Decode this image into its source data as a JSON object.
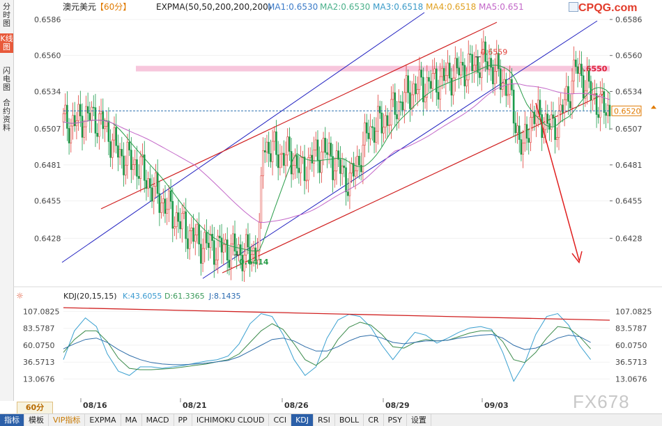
{
  "left_tabs": [
    {
      "label": "分时图",
      "active": false
    },
    {
      "label": "K线图",
      "active": true
    },
    {
      "label": "闪电图",
      "active": false
    },
    {
      "label": "合约资料",
      "active": false
    }
  ],
  "header": {
    "symbol": "澳元美元",
    "period": "【60分】",
    "indicator": "EXPMA(50,50,200,200,200)",
    "ma1": "MA1:0.6530",
    "ma2": "MA2:0.6530",
    "ma3": "MA3:0.6518",
    "ma4": "MA4:0.6518",
    "ma5": "MA5:0.651"
  },
  "logo": "CPQG.com",
  "watermark": "FX678",
  "period_button": "60分",
  "bottom_tabs": [
    {
      "label": "指标",
      "active": true
    },
    {
      "label": "模板",
      "active": false
    },
    {
      "label": "VIP指标",
      "active": false,
      "vip": true
    },
    {
      "label": "EXPMA",
      "active": false
    },
    {
      "label": "MA",
      "active": false
    },
    {
      "label": "MACD",
      "active": false
    },
    {
      "label": "PP",
      "active": false
    },
    {
      "label": "ICHIMOKU CLOUD",
      "active": false
    },
    {
      "label": "CCI",
      "active": false
    },
    {
      "label": "KDJ",
      "active": true
    },
    {
      "label": "RSI",
      "active": false
    },
    {
      "label": "BOLL",
      "active": false
    },
    {
      "label": "CR",
      "active": false
    },
    {
      "label": "PSY",
      "active": false
    },
    {
      "label": "设置",
      "active": false
    }
  ],
  "kdj_header": {
    "title": "KDJ(20,15,15)",
    "k": "K:43.6055",
    "d": "D:61.3365",
    "j": "J:8.1435"
  },
  "colors": {
    "up": "#e0403a",
    "down": "#1a9a4a",
    "ma_short": "#2a9d4a",
    "ma_long": "#c266c8",
    "channel_blue": "#2020c0",
    "channel_red": "#d02020",
    "resistance_band": "#f7c6dc",
    "k_line": "#3aa0d0",
    "d_line": "#3a8a4a",
    "j_line": "#2c6ca8"
  },
  "chart_data": {
    "type": "candlestick",
    "title": "澳元美元 60分",
    "x_labels": [
      "08/16",
      "08/21",
      "08/26",
      "08/29",
      "09/03"
    ],
    "y_ticks": [
      0.6586,
      0.656,
      0.6534,
      0.6507,
      0.6481,
      0.6455,
      0.6428
    ],
    "ylim": [
      0.6396,
      0.6591
    ],
    "current_price": 0.652,
    "current_price_label": "0.6520",
    "resistance": {
      "value": 0.655,
      "label": "0.6550"
    },
    "annotations": [
      {
        "label": "0.6559",
        "value": 0.6559
      },
      {
        "label": "0.6414",
        "value": 0.6414
      }
    ],
    "path_points": [
      [
        0,
        0.6512
      ],
      [
        4,
        0.651
      ],
      [
        10,
        0.6515
      ],
      [
        16,
        0.6516
      ],
      [
        22,
        0.6508
      ],
      [
        30,
        0.6488
      ],
      [
        40,
        0.648
      ],
      [
        48,
        0.6462
      ],
      [
        56,
        0.6449
      ],
      [
        64,
        0.6436
      ],
      [
        72,
        0.6425
      ],
      [
        80,
        0.6422
      ],
      [
        88,
        0.642
      ],
      [
        94,
        0.6418
      ],
      [
        100,
        0.6416
      ],
      [
        104,
        0.6428
      ],
      [
        106,
        0.6497
      ],
      [
        110,
        0.6492
      ],
      [
        116,
        0.6488
      ],
      [
        122,
        0.6486
      ],
      [
        126,
        0.6476
      ],
      [
        132,
        0.6486
      ],
      [
        138,
        0.6492
      ],
      [
        146,
        0.648
      ],
      [
        152,
        0.6468
      ],
      [
        158,
        0.6489
      ],
      [
        162,
        0.6506
      ],
      [
        170,
        0.6512
      ],
      [
        176,
        0.6522
      ],
      [
        184,
        0.6534
      ],
      [
        190,
        0.6538
      ],
      [
        196,
        0.654
      ],
      [
        204,
        0.6545
      ],
      [
        212,
        0.655
      ],
      [
        218,
        0.6553
      ],
      [
        222,
        0.6557
      ],
      [
        226,
        0.6555
      ],
      [
        230,
        0.6547
      ],
      [
        236,
        0.6537
      ],
      [
        240,
        0.6512
      ],
      [
        244,
        0.649
      ],
      [
        248,
        0.6516
      ],
      [
        254,
        0.6514
      ],
      [
        260,
        0.6507
      ],
      [
        264,
        0.6518
      ],
      [
        268,
        0.6532
      ],
      [
        272,
        0.6551
      ],
      [
        276,
        0.6543
      ],
      [
        280,
        0.6532
      ],
      [
        286,
        0.6522
      ],
      [
        290,
        0.652
      ]
    ],
    "kdj": {
      "ylim": [
        0,
        120
      ],
      "y_ticks": [
        107.0825,
        83.5787,
        60.075,
        36.5713,
        13.0676
      ],
      "k": [
        40,
        80,
        98,
        86,
        48,
        24,
        18,
        30,
        30,
        28,
        30,
        32,
        35,
        38,
        40,
        45,
        62,
        90,
        104,
        100,
        75,
        40,
        18,
        30,
        70,
        95,
        103,
        100,
        85,
        60,
        40,
        60,
        78,
        74,
        63,
        70,
        78,
        84,
        86,
        82,
        50,
        10,
        35,
        75,
        100,
        104,
        88,
        60,
        40
      ],
      "d": [
        50,
        68,
        80,
        80,
        65,
        42,
        28,
        26,
        26,
        27,
        28,
        30,
        32,
        34,
        37,
        40,
        48,
        64,
        80,
        90,
        82,
        62,
        40,
        32,
        44,
        68,
        85,
        92,
        88,
        75,
        58,
        56,
        64,
        68,
        66,
        67,
        72,
        77,
        80,
        80,
        65,
        40,
        36,
        50,
        70,
        86,
        84,
        72,
        55
      ],
      "j": [
        55,
        62,
        68,
        70,
        64,
        54,
        46,
        40,
        36,
        34,
        33,
        33,
        34,
        35,
        37,
        39,
        44,
        52,
        60,
        68,
        70,
        66,
        58,
        52,
        52,
        58,
        66,
        72,
        74,
        70,
        64,
        62,
        64,
        66,
        66,
        67,
        70,
        72,
        74,
        75,
        70,
        60,
        54,
        56,
        62,
        70,
        74,
        72,
        64
      ]
    }
  }
}
